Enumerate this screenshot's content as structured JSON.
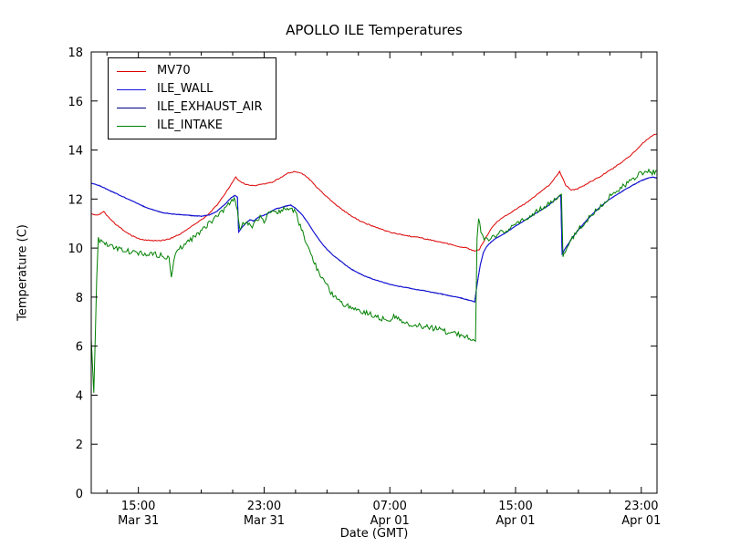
{
  "chart_data": {
    "type": "line",
    "title": "APOLLO ILE Temperatures",
    "xlabel": "Date (GMT)",
    "ylabel": "Temperature (C)",
    "x_unit": "hours since Mar 31 12:00 GMT",
    "xlim": [
      0,
      36
    ],
    "ylim": [
      0,
      18
    ],
    "yticks": [
      0,
      2,
      4,
      6,
      8,
      10,
      12,
      14,
      16,
      18
    ],
    "xticks": [
      {
        "t": 3,
        "line1": "15:00",
        "line2": "Mar 31"
      },
      {
        "t": 11,
        "line1": "23:00",
        "line2": "Mar 31"
      },
      {
        "t": 19,
        "line1": "07:00",
        "line2": "Apr 01"
      },
      {
        "t": 27,
        "line1": "15:00",
        "line2": "Apr 01"
      },
      {
        "t": 35,
        "line1": "23:00",
        "line2": "Apr 01"
      }
    ],
    "x_minor_step": 2,
    "grid": false,
    "legend_position": "upper left",
    "series": [
      {
        "name": "MV70",
        "color": "#dd0000",
        "noise": 0.02,
        "zorder": 2,
        "points": [
          [
            0,
            11.4
          ],
          [
            0.4,
            11.33
          ],
          [
            0.8,
            11.48
          ],
          [
            1.2,
            11.18
          ],
          [
            1.6,
            10.95
          ],
          [
            2,
            10.75
          ],
          [
            2.6,
            10.5
          ],
          [
            3.2,
            10.35
          ],
          [
            3.8,
            10.3
          ],
          [
            4.4,
            10.3
          ],
          [
            5,
            10.38
          ],
          [
            5.6,
            10.55
          ],
          [
            6.2,
            10.8
          ],
          [
            6.8,
            11.05
          ],
          [
            7.4,
            11.35
          ],
          [
            8,
            11.75
          ],
          [
            8.5,
            12.2
          ],
          [
            8.9,
            12.6
          ],
          [
            9.2,
            12.9
          ],
          [
            9.5,
            12.7
          ],
          [
            9.8,
            12.6
          ],
          [
            10.3,
            12.55
          ],
          [
            10.9,
            12.6
          ],
          [
            11.5,
            12.68
          ],
          [
            12,
            12.85
          ],
          [
            12.5,
            13.05
          ],
          [
            12.9,
            13.12
          ],
          [
            13.4,
            13.05
          ],
          [
            13.9,
            12.8
          ],
          [
            14.4,
            12.45
          ],
          [
            14.9,
            12.15
          ],
          [
            15.4,
            11.85
          ],
          [
            15.9,
            11.6
          ],
          [
            16.4,
            11.38
          ],
          [
            16.9,
            11.18
          ],
          [
            17.4,
            11.02
          ],
          [
            17.9,
            10.9
          ],
          [
            18.4,
            10.78
          ],
          [
            19,
            10.65
          ],
          [
            19.7,
            10.55
          ],
          [
            20.4,
            10.47
          ],
          [
            21.1,
            10.4
          ],
          [
            21.8,
            10.3
          ],
          [
            22.5,
            10.2
          ],
          [
            23.2,
            10.1
          ],
          [
            23.9,
            10.0
          ],
          [
            24.4,
            9.88
          ],
          [
            24.7,
            9.95
          ],
          [
            25,
            10.3
          ],
          [
            25.4,
            10.75
          ],
          [
            25.8,
            11.05
          ],
          [
            26.2,
            11.25
          ],
          [
            26.7,
            11.45
          ],
          [
            27.2,
            11.65
          ],
          [
            27.7,
            11.85
          ],
          [
            28.2,
            12.1
          ],
          [
            28.7,
            12.35
          ],
          [
            29.2,
            12.6
          ],
          [
            29.6,
            12.95
          ],
          [
            29.8,
            13.12
          ],
          [
            30,
            12.85
          ],
          [
            30.2,
            12.55
          ],
          [
            30.5,
            12.38
          ],
          [
            30.8,
            12.38
          ],
          [
            31.2,
            12.5
          ],
          [
            31.7,
            12.68
          ],
          [
            32.2,
            12.85
          ],
          [
            32.7,
            13.05
          ],
          [
            33.2,
            13.25
          ],
          [
            33.7,
            13.48
          ],
          [
            34.2,
            13.72
          ],
          [
            34.7,
            14.0
          ],
          [
            35.1,
            14.28
          ],
          [
            35.5,
            14.5
          ],
          [
            35.8,
            14.62
          ],
          [
            36,
            14.65
          ]
        ]
      },
      {
        "name": "ILE_WALL",
        "color": "#1515e0",
        "noise": 0.012,
        "zorder": 3,
        "points": [
          [
            0,
            12.65
          ],
          [
            0.5,
            12.55
          ],
          [
            1,
            12.4
          ],
          [
            1.5,
            12.25
          ],
          [
            2,
            12.1
          ],
          [
            2.5,
            11.95
          ],
          [
            3,
            11.8
          ],
          [
            3.5,
            11.65
          ],
          [
            4,
            11.55
          ],
          [
            4.5,
            11.45
          ],
          [
            5,
            11.4
          ],
          [
            5.5,
            11.37
          ],
          [
            6,
            11.35
          ],
          [
            6.5,
            11.32
          ],
          [
            7,
            11.3
          ],
          [
            7.5,
            11.35
          ],
          [
            8,
            11.5
          ],
          [
            8.5,
            11.78
          ],
          [
            8.9,
            12.05
          ],
          [
            9.15,
            12.15
          ],
          [
            9.3,
            12.08
          ],
          [
            9.38,
            10.65
          ],
          [
            9.6,
            10.85
          ],
          [
            9.9,
            11.05
          ],
          [
            10.1,
            11.15
          ],
          [
            10.35,
            11.1
          ],
          [
            10.6,
            11.25
          ],
          [
            10.9,
            11.32
          ],
          [
            11.15,
            11.38
          ],
          [
            11.45,
            11.5
          ],
          [
            11.75,
            11.6
          ],
          [
            12.05,
            11.65
          ],
          [
            12.4,
            11.72
          ],
          [
            12.7,
            11.75
          ],
          [
            13,
            11.62
          ],
          [
            13.4,
            11.38
          ],
          [
            13.8,
            11.02
          ],
          [
            14.2,
            10.62
          ],
          [
            14.6,
            10.25
          ],
          [
            15,
            9.95
          ],
          [
            15.4,
            9.7
          ],
          [
            15.8,
            9.5
          ],
          [
            16.2,
            9.3
          ],
          [
            16.6,
            9.12
          ],
          [
            17,
            8.98
          ],
          [
            17.4,
            8.86
          ],
          [
            17.8,
            8.76
          ],
          [
            18.2,
            8.68
          ],
          [
            18.6,
            8.6
          ],
          [
            19,
            8.52
          ],
          [
            19.5,
            8.45
          ],
          [
            20,
            8.4
          ],
          [
            20.5,
            8.33
          ],
          [
            21,
            8.28
          ],
          [
            21.5,
            8.22
          ],
          [
            22,
            8.16
          ],
          [
            22.5,
            8.1
          ],
          [
            23,
            8.03
          ],
          [
            23.5,
            7.97
          ],
          [
            23.9,
            7.9
          ],
          [
            24.2,
            7.85
          ],
          [
            24.4,
            7.8
          ],
          [
            24.55,
            8.5
          ],
          [
            24.75,
            9.3
          ],
          [
            24.95,
            9.82
          ],
          [
            25.15,
            10.05
          ],
          [
            25.45,
            10.25
          ],
          [
            25.75,
            10.4
          ],
          [
            26.05,
            10.5
          ],
          [
            26.5,
            10.68
          ],
          [
            27,
            10.9
          ],
          [
            27.5,
            11.1
          ],
          [
            28,
            11.3
          ],
          [
            28.5,
            11.5
          ],
          [
            29,
            11.7
          ],
          [
            29.4,
            11.9
          ],
          [
            29.75,
            12.1
          ],
          [
            29.88,
            12.15
          ],
          [
            29.96,
            9.75
          ],
          [
            30.2,
            10.02
          ],
          [
            30.5,
            10.32
          ],
          [
            31,
            10.75
          ],
          [
            31.5,
            11.12
          ],
          [
            32,
            11.45
          ],
          [
            32.5,
            11.75
          ],
          [
            33,
            12.0
          ],
          [
            33.5,
            12.2
          ],
          [
            34,
            12.4
          ],
          [
            34.5,
            12.58
          ],
          [
            35,
            12.75
          ],
          [
            35.4,
            12.85
          ],
          [
            35.7,
            12.9
          ],
          [
            36,
            12.85
          ]
        ]
      },
      {
        "name": "ILE_EXHAUST_AIR",
        "color": "#000080",
        "noise": 0.012,
        "zorder": 1,
        "points_ref": "ILE_WALL"
      },
      {
        "name": "ILE_INTAKE",
        "color": "#008000",
        "noise": 0.11,
        "zorder": 4,
        "points": [
          [
            0,
            6.3
          ],
          [
            0.08,
            5.2
          ],
          [
            0.16,
            4.1
          ],
          [
            0.25,
            6.2
          ],
          [
            0.35,
            8.8
          ],
          [
            0.45,
            10.35
          ],
          [
            0.8,
            10.28
          ],
          [
            1.2,
            10.1
          ],
          [
            1.6,
            10.0
          ],
          [
            2,
            9.95
          ],
          [
            2.5,
            9.85
          ],
          [
            3,
            9.8
          ],
          [
            3.5,
            9.75
          ],
          [
            4,
            9.75
          ],
          [
            4.5,
            9.7
          ],
          [
            4.95,
            9.62
          ],
          [
            5.1,
            8.72
          ],
          [
            5.25,
            9.55
          ],
          [
            5.6,
            9.95
          ],
          [
            6,
            10.15
          ],
          [
            6.4,
            10.35
          ],
          [
            6.8,
            10.6
          ],
          [
            7.2,
            10.85
          ],
          [
            7.6,
            11.05
          ],
          [
            8,
            11.3
          ],
          [
            8.4,
            11.55
          ],
          [
            8.8,
            11.8
          ],
          [
            9.1,
            11.95
          ],
          [
            9.3,
            11.55
          ],
          [
            9.45,
            10.7
          ],
          [
            9.65,
            10.95
          ],
          [
            9.85,
            11.1
          ],
          [
            10.05,
            11.0
          ],
          [
            10.25,
            10.8
          ],
          [
            10.5,
            11.1
          ],
          [
            10.75,
            11.25
          ],
          [
            11,
            11.05
          ],
          [
            11.2,
            11.35
          ],
          [
            11.5,
            11.45
          ],
          [
            11.8,
            11.4
          ],
          [
            12.1,
            11.55
          ],
          [
            12.4,
            11.65
          ],
          [
            12.7,
            11.58
          ],
          [
            13,
            11.45
          ],
          [
            13.3,
            10.9
          ],
          [
            13.6,
            10.4
          ],
          [
            13.9,
            9.9
          ],
          [
            14.2,
            9.4
          ],
          [
            14.5,
            9.0
          ],
          [
            14.8,
            8.65
          ],
          [
            15.1,
            8.35
          ],
          [
            15.4,
            8.1
          ],
          [
            15.7,
            7.9
          ],
          [
            16,
            7.75
          ],
          [
            16.4,
            7.62
          ],
          [
            16.8,
            7.5
          ],
          [
            17.2,
            7.4
          ],
          [
            17.6,
            7.32
          ],
          [
            18,
            7.25
          ],
          [
            18.4,
            7.15
          ],
          [
            18.8,
            7.05
          ],
          [
            19.1,
            7.12
          ],
          [
            19.4,
            7.25
          ],
          [
            19.7,
            7.08
          ],
          [
            20,
            6.95
          ],
          [
            20.4,
            6.9
          ],
          [
            20.8,
            6.85
          ],
          [
            21.2,
            6.8
          ],
          [
            21.6,
            6.75
          ],
          [
            22,
            6.7
          ],
          [
            22.4,
            6.62
          ],
          [
            22.8,
            6.55
          ],
          [
            23.2,
            6.5
          ],
          [
            23.6,
            6.45
          ],
          [
            24,
            6.35
          ],
          [
            24.3,
            6.27
          ],
          [
            24.45,
            6.2
          ],
          [
            24.55,
            10.4
          ],
          [
            24.65,
            11.15
          ],
          [
            24.8,
            10.7
          ],
          [
            25,
            10.35
          ],
          [
            25.3,
            10.4
          ],
          [
            25.6,
            10.5
          ],
          [
            26,
            10.6
          ],
          [
            26.5,
            10.75
          ],
          [
            27,
            10.95
          ],
          [
            27.5,
            11.15
          ],
          [
            28,
            11.35
          ],
          [
            28.5,
            11.55
          ],
          [
            29,
            11.75
          ],
          [
            29.4,
            11.95
          ],
          [
            29.8,
            12.15
          ],
          [
            29.92,
            12.2
          ],
          [
            30.02,
            9.72
          ],
          [
            30.3,
            10.1
          ],
          [
            30.6,
            10.4
          ],
          [
            31,
            10.75
          ],
          [
            31.5,
            11.12
          ],
          [
            32,
            11.48
          ],
          [
            32.5,
            11.8
          ],
          [
            33,
            12.1
          ],
          [
            33.5,
            12.35
          ],
          [
            34,
            12.6
          ],
          [
            34.5,
            12.85
          ],
          [
            35,
            13.05
          ],
          [
            35.4,
            13.15
          ],
          [
            35.7,
            13.08
          ],
          [
            36,
            13.15
          ]
        ]
      }
    ]
  },
  "colors": {
    "axes": "#000000",
    "background": "#ffffff"
  }
}
